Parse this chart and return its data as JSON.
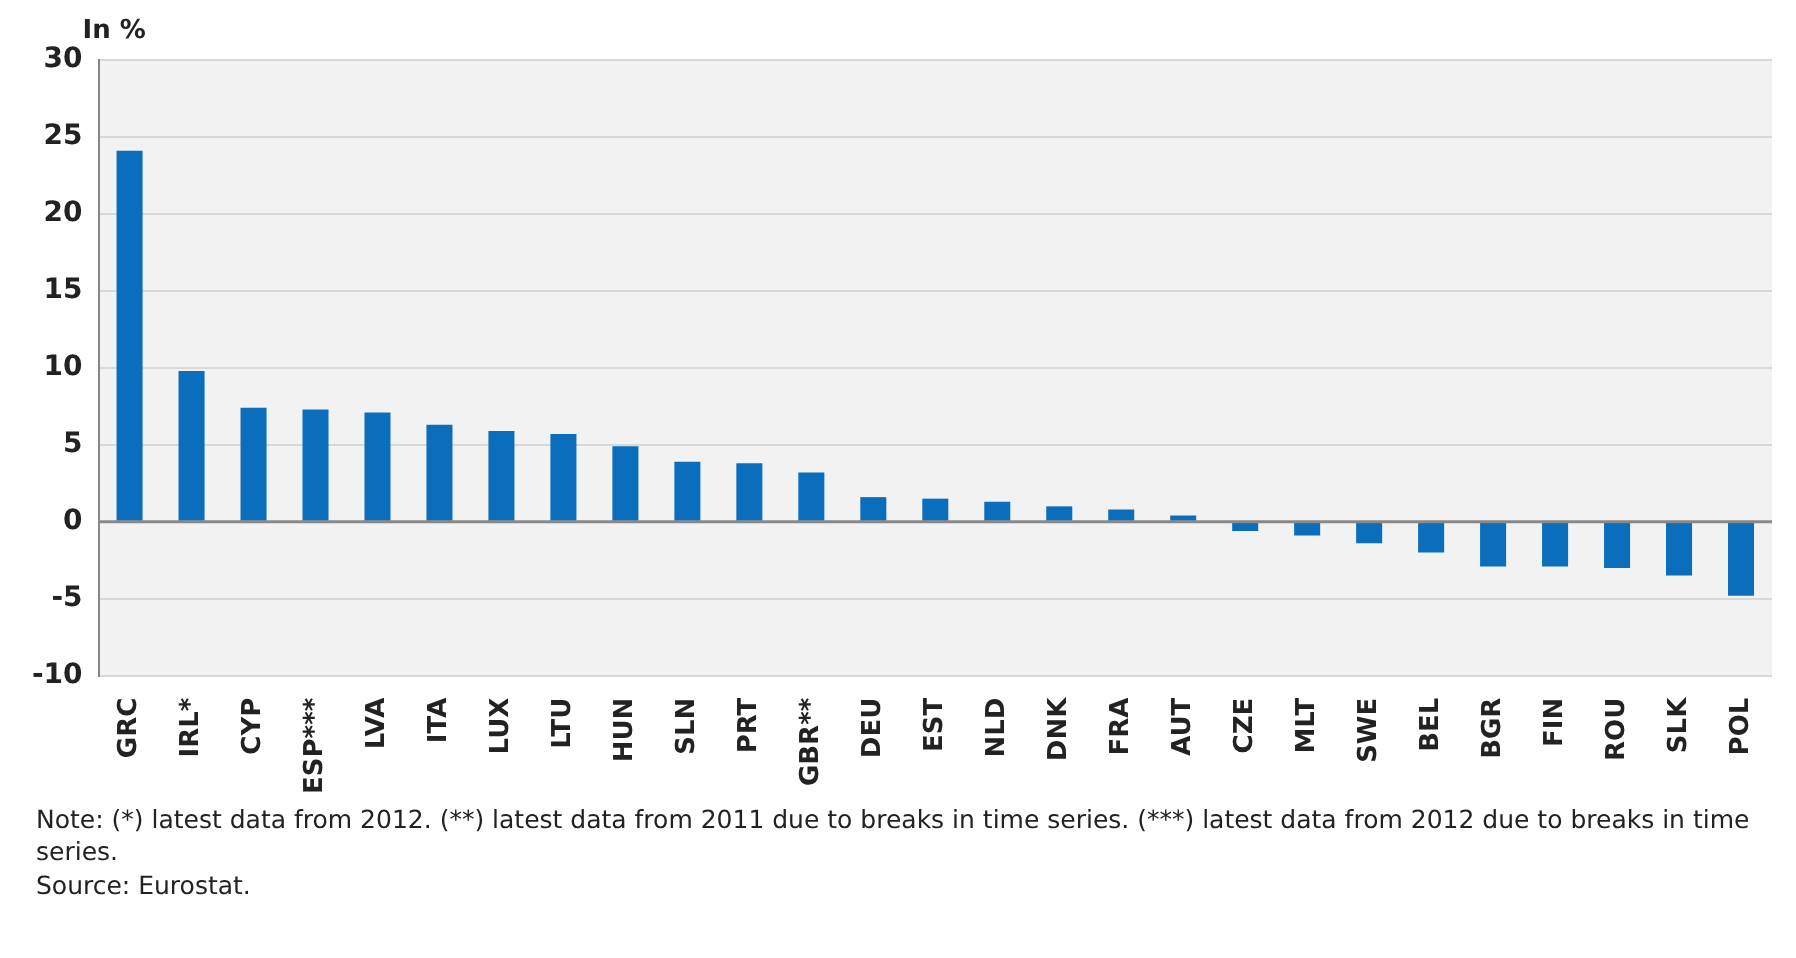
{
  "chart_data": {
    "type": "bar",
    "ylabel": "In %",
    "categories": [
      "GRC",
      "IRL*",
      "CYP",
      "ESP***",
      "LVA",
      "ITA",
      "LUX",
      "LTU",
      "HUN",
      "SLN",
      "PRT",
      "GBR**",
      "DEU",
      "EST",
      "NLD",
      "DNK",
      "FRA",
      "AUT",
      "CZE",
      "MLT",
      "SWE",
      "BEL",
      "BGR",
      "FIN",
      "ROU",
      "SLK",
      "POL"
    ],
    "values": [
      24.1,
      9.8,
      7.4,
      7.3,
      7.1,
      6.3,
      5.9,
      5.7,
      4.9,
      3.9,
      3.8,
      3.2,
      1.6,
      1.5,
      1.3,
      1.0,
      0.8,
      0.4,
      -0.6,
      -0.9,
      -1.4,
      -2.0,
      -2.9,
      -2.9,
      -3.0,
      -3.5,
      -4.8
    ],
    "color": "#0a6ebd",
    "ylim": [
      -10,
      30
    ],
    "yticks": [
      -10,
      -5,
      0,
      5,
      10,
      15,
      20,
      25,
      30
    ],
    "grid": "y",
    "annotations": [
      "Note: (*) latest data from 2012. (**) latest data from 2011 due to breaks in time series. (***) latest data from 2012 due to breaks in time series.",
      "Source: Eurostat."
    ]
  }
}
